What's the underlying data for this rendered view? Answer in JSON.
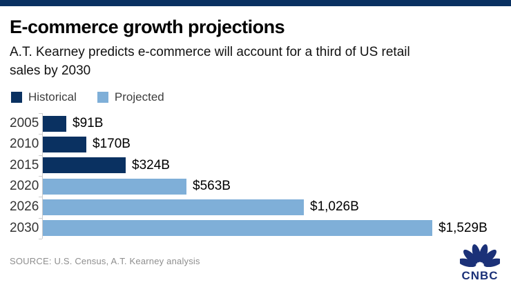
{
  "page": {
    "accent_bar_color": "#0a3161",
    "background": "#ffffff"
  },
  "header": {
    "title": "E-commerce growth projections",
    "subtitle_lines": {
      "0": "A.T. Kearney predicts e-commerce will account for a third of US retail",
      "1": "sales by 2030"
    }
  },
  "legend": [
    {
      "label": "Historical",
      "color": "#0a3161"
    },
    {
      "label": "Projected",
      "color": "#7fafd8"
    }
  ],
  "chart_data": {
    "type": "bar",
    "orientation": "horizontal",
    "title": "E-commerce growth projections",
    "categories": [
      "2005",
      "2010",
      "2015",
      "2020",
      "2026",
      "2030"
    ],
    "values": [
      91,
      170,
      324,
      563,
      1026,
      1529
    ],
    "value_labels": [
      "$91B",
      "$170B",
      "$324B",
      "$563B",
      "$1,026B",
      "$1,529B"
    ],
    "series_membership": [
      "Historical",
      "Historical",
      "Historical",
      "Projected",
      "Projected",
      "Projected"
    ],
    "colors": {
      "Historical": "#0a3161",
      "Projected": "#7fafd8"
    },
    "xlim": [
      0,
      1529
    ],
    "grid": false,
    "legend_position": "top-left",
    "legend_entries": [
      "Historical",
      "Projected"
    ]
  },
  "footer": {
    "source": "SOURCE: U.S. Census, A.T. Kearney analysis",
    "logo_text": "CNBC",
    "logo_color": "#1b3178"
  }
}
